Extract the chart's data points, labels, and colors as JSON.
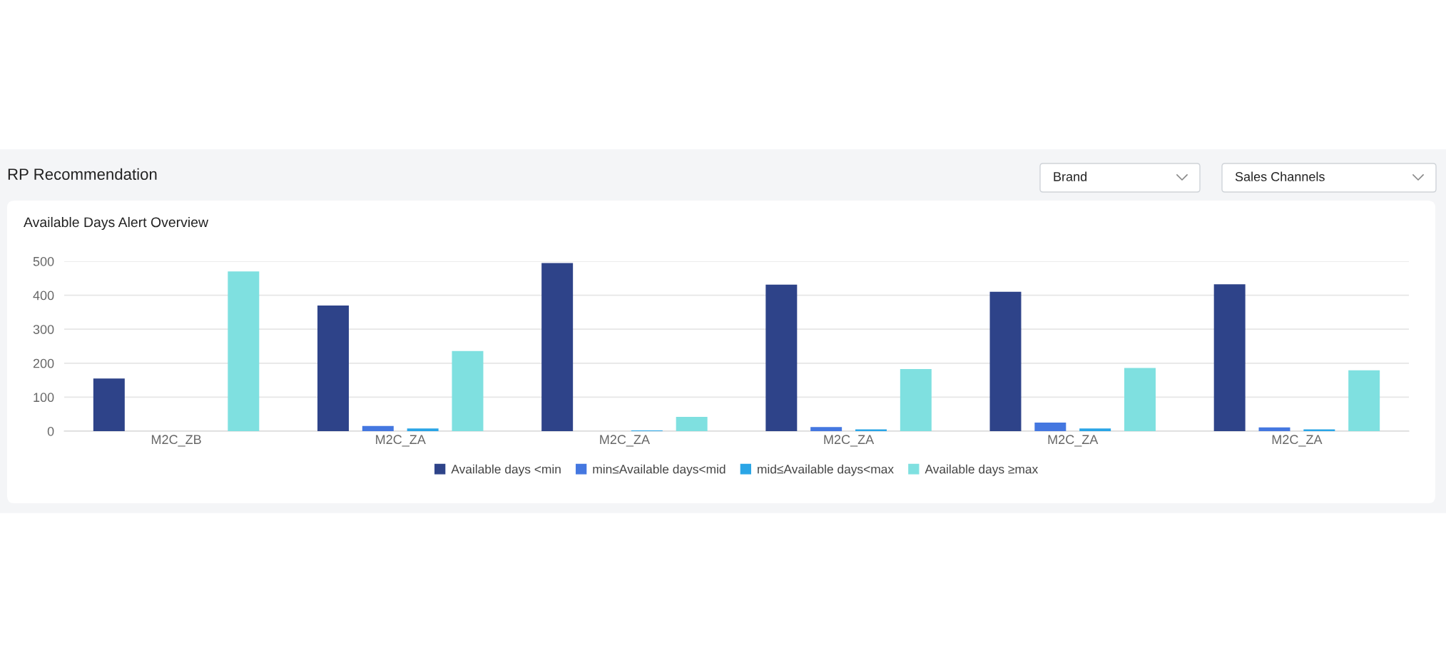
{
  "chart_data": {
    "type": "bar",
    "title": "Available Days Alert Overview",
    "annotations": [
      "RP Recommendation",
      "Brand",
      "Sales Channels"
    ],
    "categories": [
      "M2C_ZB",
      "M2C_ZA",
      "M2C_ZA",
      "M2C_ZA",
      "M2C_ZA",
      "M2C_ZA"
    ],
    "series": [
      {
        "name": "Available days <min",
        "color": "#2e4389",
        "values": [
          155,
          370,
          495,
          431,
          410,
          432
        ]
      },
      {
        "name": "min≤Available days<mid",
        "color": "#4477e0",
        "values": [
          0,
          15,
          0,
          12,
          25,
          11
        ]
      },
      {
        "name": "mid≤Available days<max",
        "color": "#2aa5e6",
        "values": [
          0,
          8,
          2,
          5,
          8,
          5
        ]
      },
      {
        "name": "Available days ≥max",
        "color": "#7fe0e0",
        "values": [
          470,
          236,
          42,
          183,
          186,
          179
        ]
      }
    ],
    "ylim": [
      0,
      500
    ],
    "yticks": [
      0,
      100,
      200,
      300,
      400,
      500
    ],
    "grid": "y",
    "legend": "bottom"
  }
}
